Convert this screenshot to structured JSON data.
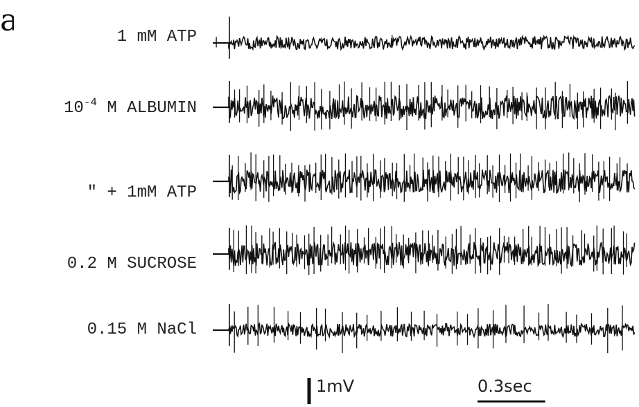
{
  "panel_letter": "a",
  "chart_data": {
    "type": "line",
    "title": "",
    "xlabel": "",
    "ylabel": "",
    "series": [
      {
        "name": "1 mM ATP",
        "label_main": "1 mM ATP",
        "label_exp": "",
        "label_rest": "",
        "noise_mV": 0.25,
        "spike_rate_hz": 1,
        "spike_up_mV": 0.3,
        "spike_down_mV": 0.2,
        "onset_artifact_mV": 1.0
      },
      {
        "name": "10-4 M ALBUMIN",
        "label_main": "10",
        "label_exp": "-4",
        "label_rest": " M ALBUMIN",
        "noise_mV": 0.45,
        "spike_rate_hz": 28,
        "spike_up_mV": 1.0,
        "spike_down_mV": 0.9,
        "onset_artifact_mV": 1.0
      },
      {
        "name": "\" + 1mM ATP",
        "label_main": "\"  + 1mM ATP",
        "label_exp": "",
        "label_rest": "",
        "noise_mV": 0.45,
        "spike_rate_hz": 38,
        "spike_up_mV": 1.1,
        "spike_down_mV": 0.8,
        "onset_artifact_mV": 1.0
      },
      {
        "name": "0.2 M SUCROSE",
        "label_main": "0.2 M SUCROSE",
        "label_exp": "",
        "label_rest": "",
        "noise_mV": 0.45,
        "spike_rate_hz": 38,
        "spike_up_mV": 1.1,
        "spike_down_mV": 0.8,
        "onset_artifact_mV": 1.0
      },
      {
        "name": "0.15 M NaCl",
        "label_main": "0.15 M NaCl",
        "label_exp": "",
        "label_rest": "",
        "noise_mV": 0.25,
        "spike_rate_hz": 16,
        "spike_up_mV": 1.0,
        "spike_down_mV": 0.9,
        "onset_artifact_mV": 1.0
      }
    ],
    "duration_sec": 1.8,
    "scale_bar_voltage": {
      "value": 1,
      "unit": "mV",
      "label": "1mV"
    },
    "scale_bar_time": {
      "value": 0.3,
      "unit": "sec",
      "label": "0.3sec"
    },
    "grid": false,
    "legend": "none",
    "trace_color": "#111111"
  }
}
